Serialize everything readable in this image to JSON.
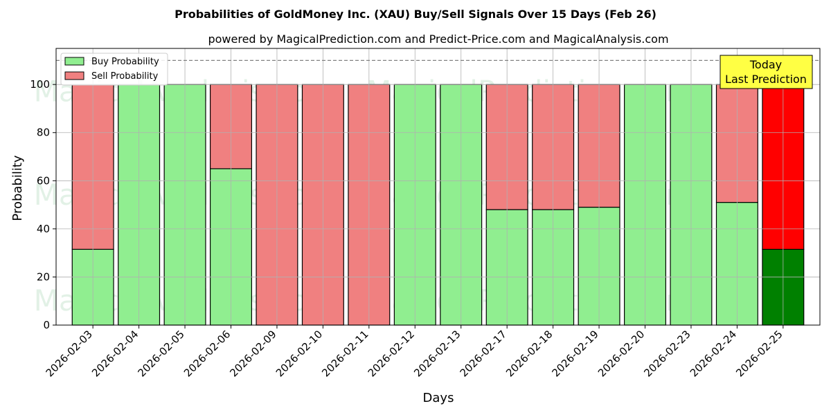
{
  "chart_data": {
    "type": "bar",
    "title": "Probabilities of GoldMoney Inc. (XAU) Buy/Sell Signals Over 15 Days (Feb 26)",
    "subtitle": "powered by MagicalPrediction.com and Predict-Price.com and MagicalAnalysis.com",
    "xlabel": "Days",
    "ylabel": "Probability",
    "ylim": [
      0,
      115
    ],
    "yticks": [
      0,
      20,
      40,
      60,
      80,
      100
    ],
    "grid": true,
    "stacked": true,
    "categories": [
      "2026-02-03",
      "2026-02-04",
      "2026-02-05",
      "2026-02-06",
      "2026-02-09",
      "2026-02-10",
      "2026-02-11",
      "2026-02-12",
      "2026-02-13",
      "2026-02-17",
      "2026-02-18",
      "2026-02-19",
      "2026-02-20",
      "2026-02-23",
      "2026-02-24",
      "2026-02-25"
    ],
    "series": [
      {
        "name": "Buy Probability",
        "color": "#90ee90",
        "values": [
          31.5,
          100,
          100,
          65,
          0,
          0,
          0,
          100,
          100,
          48,
          48,
          49,
          100,
          100,
          51,
          31.5
        ]
      },
      {
        "name": "Sell Probability",
        "color": "#f08080",
        "values": [
          68.5,
          0,
          0,
          35,
          100,
          100,
          100,
          0,
          0,
          52,
          52,
          51,
          0,
          0,
          49,
          68.5
        ]
      }
    ],
    "highlight": {
      "index": 15,
      "buy_color": "#008000",
      "sell_color": "#ff0000"
    },
    "reference_line": {
      "y": 110,
      "color": "#808080",
      "style": "dashed"
    },
    "legend": {
      "placement": "top-left"
    },
    "annotation": {
      "lines": [
        "Today",
        "Last Prediction"
      ],
      "background": "#ffff44",
      "placement": "top-right"
    },
    "watermarks": [
      "MagicalAnalysis.com",
      "MagicalPrediction.com"
    ]
  }
}
